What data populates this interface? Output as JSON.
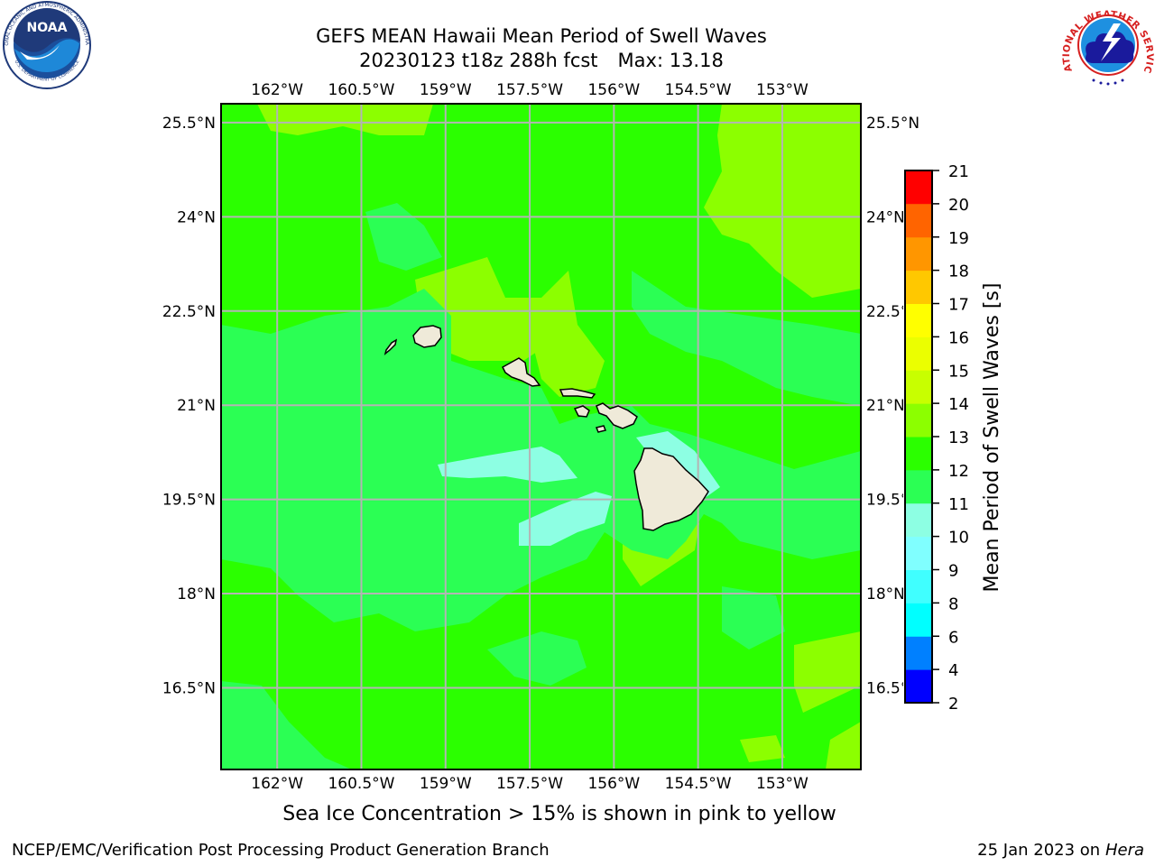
{
  "title": {
    "line1": "GEFS MEAN Hawaii Mean Period of Swell Waves",
    "line2_date": "20230123 t18z 288h fcst",
    "line2_max": "Max: 13.18"
  },
  "map": {
    "lon_min": -163,
    "lon_max": -151.6,
    "lat_min": 15.2,
    "lat_max": 25.8,
    "lon_ticks": [
      -162,
      -160.5,
      -159,
      -157.5,
      -156,
      -154.5,
      -153
    ],
    "lon_labels": [
      "162°W",
      "160.5°W",
      "159°W",
      "157.5°W",
      "156°W",
      "154.5°W",
      "153°W"
    ],
    "lat_ticks": [
      25.5,
      24,
      22.5,
      21,
      19.5,
      18,
      16.5
    ],
    "lat_labels": [
      "25.5°N",
      "24°N",
      "22.5°N",
      "21°N",
      "19.5°N",
      "18°N",
      "16.5°N"
    ],
    "field_colors": {
      "lt10": "#8dffe3",
      "10_11": "#2bff54",
      "11_12": "#2bff00",
      "12_13": "#8cff00",
      "13_14": "#c8ff00"
    },
    "islands": [
      "Niihau",
      "Kauai",
      "Oahu",
      "Molokai",
      "Lanai",
      "Kahoolawe",
      "Maui",
      "Hawaii"
    ]
  },
  "colorbar": {
    "label": "Mean Period of Swell Waves [s]",
    "ticks": [
      "2",
      "4",
      "6",
      "8",
      "9",
      "10",
      "11",
      "12",
      "13",
      "14",
      "15",
      "16",
      "17",
      "18",
      "19",
      "20",
      "21"
    ],
    "colors": [
      "#0000ff",
      "#0080ff",
      "#00ffff",
      "#40ffff",
      "#80ffff",
      "#8dffe3",
      "#2bff54",
      "#2bff00",
      "#8cff00",
      "#c8ff00",
      "#ebff00",
      "#ffff00",
      "#ffc800",
      "#ff9600",
      "#ff6400",
      "#ff3200",
      "#ff0000"
    ]
  },
  "footnote": "Sea Ice Concentration > 15% is shown in pink to yellow",
  "footer": {
    "left": "NCEP/EMC/Verification Post Processing Product Generation Branch",
    "right_date": "25 Jan 2023 on",
    "right_host": "Hera"
  },
  "logos": {
    "noaa_text": "NOAA",
    "noaa_ring": "NATIONAL OCEANIC AND ATMOSPHERIC ADMINISTRATION",
    "noaa_bottom": "U.S. DEPARTMENT OF COMMERCE",
    "nws_ring": "NATIONAL WEATHER SERVICE"
  }
}
